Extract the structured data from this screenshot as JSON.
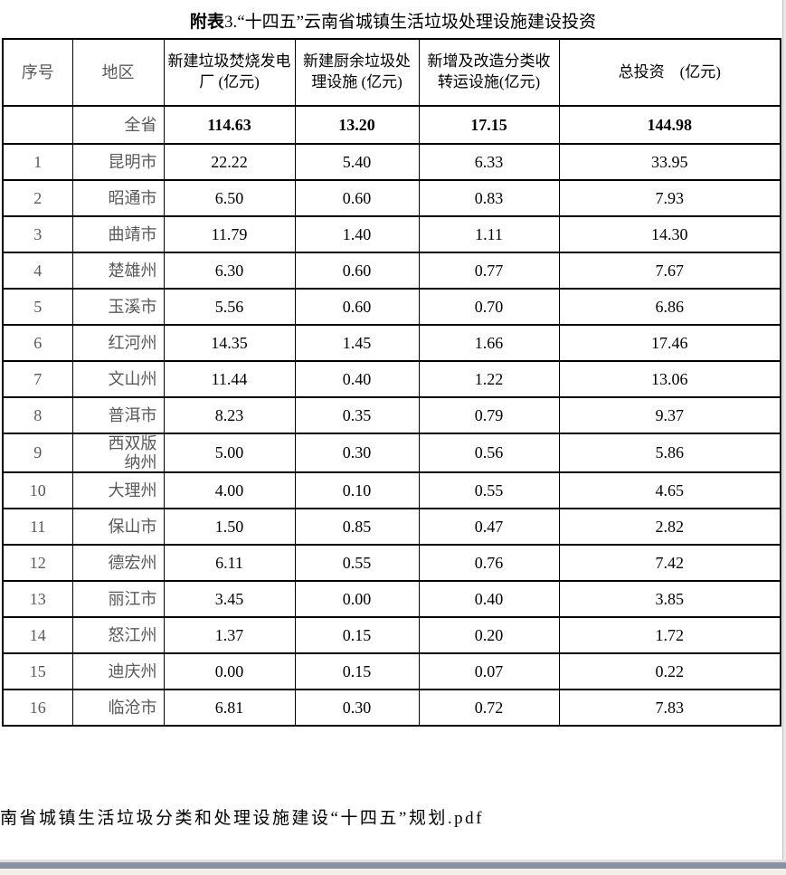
{
  "title": {
    "prefix": "附表",
    "rest": "3.“十四五”云南省城镇生活垃圾处理设施建设投资"
  },
  "table": {
    "headers": [
      "序号",
      "地区",
      "新建垃圾焚烧发电厂 (亿元)",
      "新建厨余垃圾处理设施 (亿元)",
      "新增及改造分类收转运设施(亿元)",
      "总投资　(亿元)"
    ],
    "summary": {
      "index": "",
      "region": "全省",
      "values": [
        "114.63",
        "13.20",
        "17.15",
        "144.98"
      ]
    },
    "rows": [
      {
        "index": "1",
        "region": "昆明市",
        "values": [
          "22.22",
          "5.40",
          "6.33",
          "33.95"
        ]
      },
      {
        "index": "2",
        "region": "昭通市",
        "values": [
          "6.50",
          "0.60",
          "0.83",
          "7.93"
        ]
      },
      {
        "index": "3",
        "region": "曲靖市",
        "values": [
          "11.79",
          "1.40",
          "1.11",
          "14.30"
        ]
      },
      {
        "index": "4",
        "region": "楚雄州",
        "values": [
          "6.30",
          "0.60",
          "0.77",
          "7.67"
        ]
      },
      {
        "index": "5",
        "region": "玉溪市",
        "values": [
          "5.56",
          "0.60",
          "0.70",
          "6.86"
        ]
      },
      {
        "index": "6",
        "region": "红河州",
        "values": [
          "14.35",
          "1.45",
          "1.66",
          "17.46"
        ]
      },
      {
        "index": "7",
        "region": "文山州",
        "values": [
          "11.44",
          "0.40",
          "1.22",
          "13.06"
        ]
      },
      {
        "index": "8",
        "region": "普洱市",
        "values": [
          "8.23",
          "0.35",
          "0.79",
          "9.37"
        ]
      },
      {
        "index": "9",
        "region": "西双版\n纳州",
        "values": [
          "5.00",
          "0.30",
          "0.56",
          "5.86"
        ]
      },
      {
        "index": "10",
        "region": "大理州",
        "values": [
          "4.00",
          "0.10",
          "0.55",
          "4.65"
        ]
      },
      {
        "index": "11",
        "region": "保山市",
        "values": [
          "1.50",
          "0.85",
          "0.47",
          "2.82"
        ]
      },
      {
        "index": "12",
        "region": "德宏州",
        "values": [
          "6.11",
          "0.55",
          "0.76",
          "7.42"
        ]
      },
      {
        "index": "13",
        "region": "丽江市",
        "values": [
          "3.45",
          "0.00",
          "0.40",
          "3.85"
        ]
      },
      {
        "index": "14",
        "region": "怒江州",
        "values": [
          "1.37",
          "0.15",
          "0.20",
          "1.72"
        ]
      },
      {
        "index": "15",
        "region": "迪庆州",
        "values": [
          "0.00",
          "0.15",
          "0.07",
          "0.22"
        ]
      },
      {
        "index": "16",
        "region": "临沧市",
        "values": [
          "6.81",
          "0.30",
          "0.72",
          "7.83"
        ]
      }
    ]
  },
  "footer": {
    "filename": "南省城镇生活垃圾分类和处理设施建设“十四五”规划.pdf"
  },
  "colors": {
    "gray_text": "#595959",
    "bottom_bar_blue": "#8a91a4",
    "bottom_bar_beige": "#f2efe8"
  }
}
